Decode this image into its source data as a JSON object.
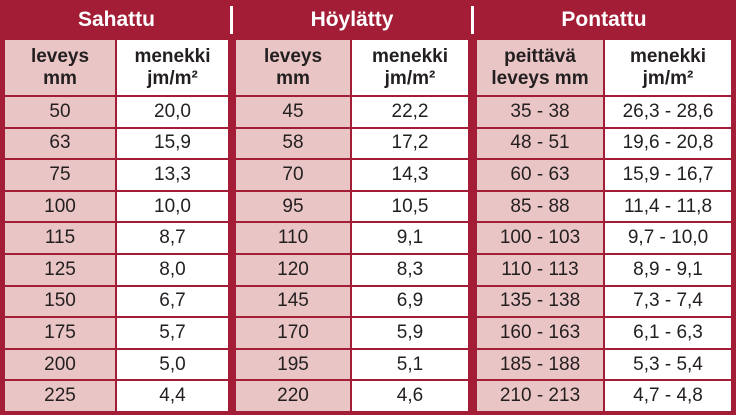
{
  "groups": [
    {
      "title": "Sahattu",
      "columns": [
        [
          "leveys",
          "mm"
        ],
        [
          "menekki",
          "jm/m²"
        ]
      ]
    },
    {
      "title": "Höylätty",
      "columns": [
        [
          "leveys",
          "mm"
        ],
        [
          "menekki",
          "jm/m²"
        ]
      ]
    },
    {
      "title": "Pontattu",
      "columns": [
        [
          "peittävä",
          "leveys mm"
        ],
        [
          "menekki",
          "jm/m²"
        ]
      ]
    }
  ],
  "rows": [
    [
      "50",
      "20,0",
      "45",
      "22,2",
      "35 - 38",
      "26,3 - 28,6"
    ],
    [
      "63",
      "15,9",
      "58",
      "17,2",
      "48 - 51",
      "19,6 - 20,8"
    ],
    [
      "75",
      "13,3",
      "70",
      "14,3",
      "60 - 63",
      "15,9 - 16,7"
    ],
    [
      "100",
      "10,0",
      "95",
      "10,5",
      "85 - 88",
      "11,4 - 11,8"
    ],
    [
      "115",
      "8,7",
      "110",
      "9,1",
      "100 - 103",
      "9,7 - 10,0"
    ],
    [
      "125",
      "8,0",
      "120",
      "8,3",
      "110 - 113",
      "8,9 - 9,1"
    ],
    [
      "150",
      "6,7",
      "145",
      "6,9",
      "135 - 138",
      "7,3 - 7,4"
    ],
    [
      "175",
      "5,7",
      "170",
      "5,9",
      "160 - 163",
      "6,1 - 6,3"
    ],
    [
      "200",
      "5,0",
      "195",
      "5,1",
      "185 - 188",
      "5,3 - 5,4"
    ],
    [
      "225",
      "4,4",
      "220",
      "4,6",
      "210 - 213",
      "4,7 - 4,8"
    ]
  ]
}
